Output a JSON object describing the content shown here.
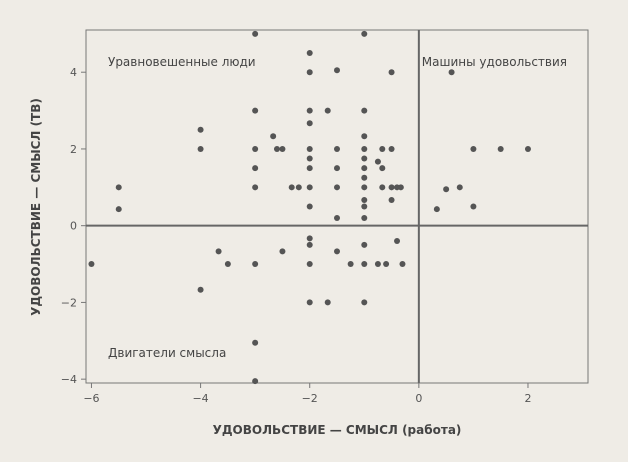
{
  "chart_data": {
    "type": "scatter",
    "title": "",
    "xlabel": "УДОВОЛЬСТВИЕ — СМЫСЛ (работа)",
    "ylabel": "УДОВОЛЬСТВИЕ — СМЫСЛ (ТВ)",
    "xlim": [
      -6.1,
      3.1
    ],
    "ylim": [
      -4.1,
      5.1
    ],
    "xticks": [
      -6,
      -4,
      -2,
      0,
      2
    ],
    "yticks": [
      -4,
      -2,
      0,
      2,
      4
    ],
    "xtick_labels": [
      "−6",
      "−4",
      "−2",
      "0",
      "2"
    ],
    "ytick_labels": [
      "−4",
      "−2",
      "0",
      "2",
      "4"
    ],
    "reference_lines": {
      "x": 0,
      "y": 0
    },
    "grid": false,
    "point_color": "#555555",
    "quadrant_labels": {
      "top_left": "Уравновешенные люди",
      "top_right": "Машины удовольствия",
      "bottom_left": "Двигатели смысла"
    },
    "points": [
      [
        -6,
        -1
      ],
      [
        -5.5,
        1
      ],
      [
        -5.5,
        0.43
      ],
      [
        -4,
        2.5
      ],
      [
        -4,
        2
      ],
      [
        -4,
        -1.67
      ],
      [
        -3.67,
        -0.67
      ],
      [
        -3.5,
        -1
      ],
      [
        -3,
        5
      ],
      [
        -3,
        3
      ],
      [
        -3,
        2
      ],
      [
        -3,
        1.5
      ],
      [
        -3,
        1
      ],
      [
        -3,
        -1
      ],
      [
        -3,
        -3.05
      ],
      [
        -3,
        -4.05
      ],
      [
        -2.67,
        2.33
      ],
      [
        -2.6,
        2
      ],
      [
        -2.5,
        2
      ],
      [
        -2.5,
        -0.67
      ],
      [
        -2.33,
        1
      ],
      [
        -2.2,
        1
      ],
      [
        -2,
        4.5
      ],
      [
        -2,
        4
      ],
      [
        -2,
        3
      ],
      [
        -2,
        2.67
      ],
      [
        -2,
        2
      ],
      [
        -2,
        1.75
      ],
      [
        -2,
        1.5
      ],
      [
        -2,
        1
      ],
      [
        -2,
        0.5
      ],
      [
        -2,
        -0.33
      ],
      [
        -2,
        -0.5
      ],
      [
        -2,
        -1
      ],
      [
        -2,
        -2
      ],
      [
        -1.67,
        3
      ],
      [
        -1.67,
        -2
      ],
      [
        -1.5,
        4.05
      ],
      [
        -1.5,
        2
      ],
      [
        -1.5,
        1.5
      ],
      [
        -1.5,
        1
      ],
      [
        -1.5,
        0.2
      ],
      [
        -1.5,
        -0.67
      ],
      [
        -1.25,
        -1
      ],
      [
        -1,
        5
      ],
      [
        -1,
        3
      ],
      [
        -1,
        2.33
      ],
      [
        -1,
        2
      ],
      [
        -1,
        1.75
      ],
      [
        -1,
        1.5
      ],
      [
        -1,
        1.25
      ],
      [
        -1,
        1
      ],
      [
        -1,
        0.67
      ],
      [
        -1,
        0.5
      ],
      [
        -1,
        0.2
      ],
      [
        -1,
        -0.5
      ],
      [
        -1,
        -1
      ],
      [
        -1,
        -2
      ],
      [
        -0.75,
        1.67
      ],
      [
        -0.75,
        -1
      ],
      [
        -0.67,
        2
      ],
      [
        -0.67,
        1.5
      ],
      [
        -0.67,
        1
      ],
      [
        -0.6,
        -1
      ],
      [
        -0.5,
        4
      ],
      [
        -0.5,
        2
      ],
      [
        -0.5,
        0.67
      ],
      [
        -0.5,
        1
      ],
      [
        -0.4,
        1
      ],
      [
        -0.4,
        -0.4
      ],
      [
        -0.33,
        1
      ],
      [
        -0.3,
        -1
      ],
      [
        0.33,
        0.43
      ],
      [
        0.5,
        0.95
      ],
      [
        0.6,
        4
      ],
      [
        0.75,
        1
      ],
      [
        1,
        2
      ],
      [
        1,
        0.5
      ],
      [
        1.5,
        2
      ],
      [
        2,
        2
      ]
    ]
  }
}
